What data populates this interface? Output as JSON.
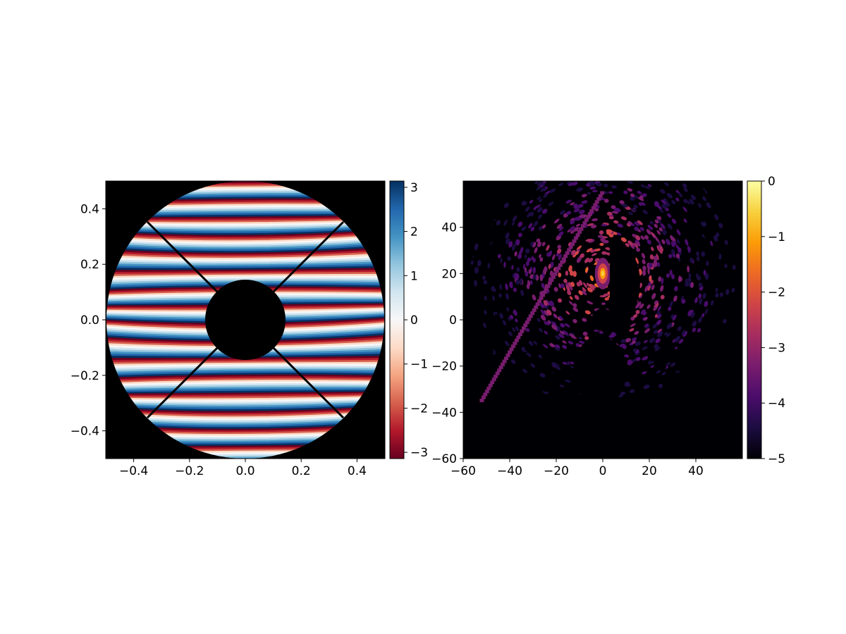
{
  "chart_data": [
    {
      "type": "heatmap",
      "description_free": true,
      "xlim": [
        -0.5,
        0.5
      ],
      "ylim": [
        -0.5,
        0.5
      ],
      "x_ticks": [
        -0.4,
        -0.2,
        0.0,
        0.2,
        0.4
      ],
      "x_tick_labels": [
        "−0.4",
        "−0.2",
        "0.0",
        "0.2",
        "0.4"
      ],
      "y_ticks": [
        0.4,
        0.2,
        0.0,
        -0.2,
        -0.4
      ],
      "y_tick_labels": [
        "0.4",
        "0.2",
        "0.0",
        "−0.2",
        "−0.4"
      ],
      "pupil": {
        "outer_radius": 0.5,
        "inner_radius": 0.145,
        "spider_angles_deg": [
          45,
          135,
          225,
          315
        ]
      },
      "colorbar": {
        "colormap": "RdBu",
        "range": [
          -3.14159,
          3.14159
        ],
        "ticks": [
          3,
          2,
          1,
          0,
          -1,
          -2,
          -3
        ],
        "tick_labels": [
          "3",
          "2",
          "1",
          "0",
          "−1",
          "−2",
          "−3"
        ],
        "colors": [
          "#67001f",
          "#b2182b",
          "#d6604d",
          "#f4a582",
          "#fddbc7",
          "#f7f7f7",
          "#d1e5f0",
          "#92c5de",
          "#4393c3",
          "#2166ac",
          "#053061"
        ]
      },
      "title": "",
      "xlabel": "",
      "ylabel": ""
    },
    {
      "type": "heatmap",
      "xlim": [
        -60,
        60
      ],
      "ylim": [
        -60,
        60
      ],
      "x_ticks": [
        -60,
        -40,
        -20,
        0,
        20,
        40
      ],
      "x_tick_labels": [
        "−60",
        "−40",
        "−20",
        "0",
        "20",
        "40"
      ],
      "y_ticks": [
        40,
        20,
        0,
        -20,
        -40,
        -60
      ],
      "y_tick_labels": [
        "40",
        "20",
        "0",
        "−20",
        "−40",
        "−60"
      ],
      "peak": {
        "x": 0,
        "y": 20,
        "value": 0
      },
      "dark_hole": {
        "x_min": 3,
        "y_min": 15,
        "y_max": 35
      },
      "colorbar": {
        "colormap": "inferno",
        "range": [
          -5,
          0
        ],
        "ticks": [
          0,
          -1,
          -2,
          -3,
          -4,
          -5
        ],
        "tick_labels": [
          "0",
          "−1",
          "−2",
          "−3",
          "−4",
          "−5"
        ],
        "colors": [
          "#000004",
          "#1b0c41",
          "#4a0c6b",
          "#781c6d",
          "#a52c60",
          "#cf4446",
          "#ed6925",
          "#fb9b06",
          "#f7d13d",
          "#fcffa4"
        ]
      },
      "title": "",
      "xlabel": "",
      "ylabel": ""
    }
  ]
}
